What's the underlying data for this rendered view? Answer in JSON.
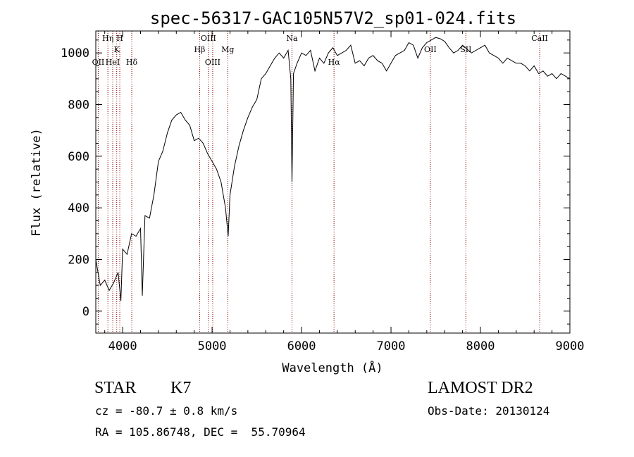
{
  "chart_data": {
    "type": "line",
    "title": "spec-56317-GAC105N57V2_sp01-024.fits",
    "xlabel": "Wavelength (Å)",
    "ylabel": "Flux (relative)",
    "xlim": [
      3700,
      9000
    ],
    "ylim": [
      -85,
      1085
    ],
    "x_ticks": [
      4000,
      5000,
      6000,
      7000,
      8000,
      9000
    ],
    "y_ticks": [
      0,
      200,
      400,
      600,
      800,
      1000
    ],
    "grid": false,
    "line_color": "#000000",
    "marker_color": "#8b0000",
    "spectrum": {
      "x": [
        3700,
        3750,
        3800,
        3850,
        3900,
        3950,
        3980,
        4000,
        4050,
        4100,
        4150,
        4200,
        4220,
        4250,
        4300,
        4350,
        4400,
        4450,
        4500,
        4550,
        4600,
        4650,
        4700,
        4750,
        4800,
        4850,
        4900,
        4950,
        5000,
        5050,
        5100,
        5150,
        5180,
        5200,
        5250,
        5300,
        5350,
        5400,
        5450,
        5500,
        5550,
        5600,
        5650,
        5700,
        5750,
        5800,
        5850,
        5880,
        5893,
        5910,
        5950,
        6000,
        6050,
        6100,
        6150,
        6200,
        6250,
        6300,
        6350,
        6400,
        6450,
        6500,
        6550,
        6600,
        6650,
        6700,
        6750,
        6800,
        6850,
        6900,
        6950,
        7000,
        7050,
        7100,
        7150,
        7200,
        7250,
        7300,
        7350,
        7400,
        7450,
        7500,
        7550,
        7600,
        7650,
        7700,
        7750,
        7800,
        7850,
        7900,
        7950,
        8000,
        8050,
        8100,
        8150,
        8200,
        8250,
        8300,
        8350,
        8400,
        8450,
        8500,
        8550,
        8600,
        8650,
        8700,
        8750,
        8800,
        8850,
        8900,
        8950,
        9000
      ],
      "y": [
        200,
        100,
        120,
        80,
        110,
        150,
        40,
        240,
        220,
        300,
        290,
        320,
        60,
        370,
        360,
        450,
        580,
        620,
        690,
        740,
        760,
        770,
        740,
        720,
        660,
        670,
        650,
        610,
        580,
        550,
        500,
        400,
        290,
        450,
        560,
        640,
        700,
        750,
        790,
        820,
        900,
        920,
        950,
        980,
        1000,
        980,
        1010,
        900,
        500,
        920,
        960,
        1000,
        990,
        1010,
        930,
        980,
        960,
        1000,
        1020,
        990,
        1000,
        1010,
        1030,
        960,
        970,
        950,
        980,
        990,
        970,
        960,
        930,
        960,
        990,
        1000,
        1010,
        1040,
        1030,
        980,
        1020,
        1040,
        1050,
        1060,
        1055,
        1045,
        1020,
        1000,
        1010,
        1030,
        1015,
        1000,
        1010,
        1020,
        1030,
        1000,
        990,
        980,
        960,
        980,
        970,
        960,
        960,
        950,
        930,
        950,
        920,
        930,
        910,
        920,
        900,
        920,
        910,
        900
      ]
    },
    "spectral_lines": [
      {
        "label": "OII",
        "wavelength": 3727
      },
      {
        "label": "Hη",
        "wavelength": 3835
      },
      {
        "label": "HeI",
        "wavelength": 3889
      },
      {
        "label": "K",
        "wavelength": 3934
      },
      {
        "label": "H",
        "wavelength": 3968
      },
      {
        "label": "Hδ",
        "wavelength": 4102
      },
      {
        "label": "Hβ",
        "wavelength": 4861
      },
      {
        "label": "OIII",
        "wavelength": 4959
      },
      {
        "label": "OIII",
        "wavelength": 5007
      },
      {
        "label": "Mg",
        "wavelength": 5175
      },
      {
        "label": "Na",
        "wavelength": 5893
      },
      {
        "label": "Hα",
        "wavelength": 6363
      },
      {
        "label": "OII",
        "wavelength": 7440
      },
      {
        "label": "SII",
        "wavelength": 7837
      },
      {
        "label": "CaII",
        "wavelength": 8662
      }
    ]
  },
  "info": {
    "object_class": "STAR",
    "subclass": "K7",
    "survey": "LAMOST DR2",
    "redshift": "cz = -80.7 ± 0.8 km/s",
    "obs_date": "Obs-Date: 20130124",
    "coordinates": "RA = 105.86748, DEC =  55.70964"
  }
}
